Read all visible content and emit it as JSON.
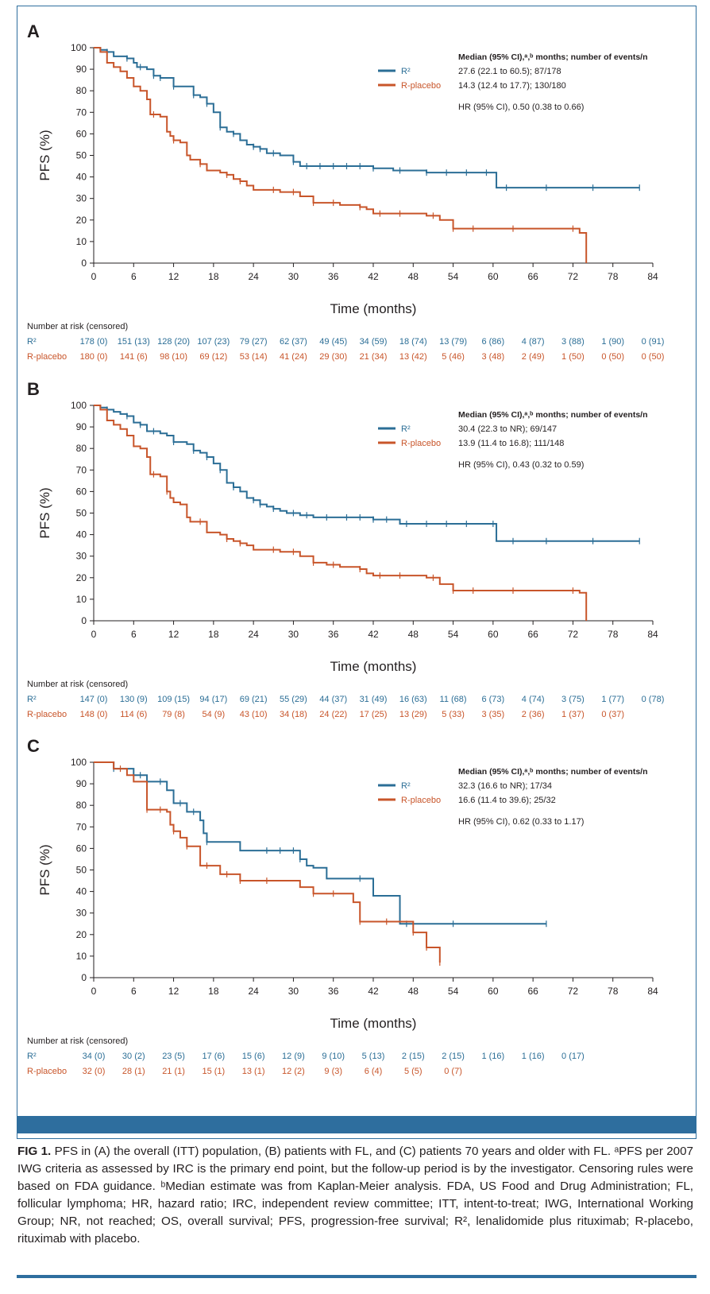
{
  "colors": {
    "r2": "#2b6e96",
    "placebo": "#c8552a",
    "accent": "#2e6e9e"
  },
  "chart_data": [
    {
      "type": "line",
      "panel_label": "A",
      "xlabel": "Time (months)",
      "ylabel": "PFS (%)",
      "xlim": [
        0,
        84
      ],
      "ylim": [
        0,
        100
      ],
      "xticks": [
        0,
        6,
        12,
        18,
        24,
        30,
        36,
        42,
        48,
        54,
        60,
        66,
        72,
        78,
        84
      ],
      "yticks": [
        0,
        10,
        20,
        30,
        40,
        50,
        60,
        70,
        80,
        90,
        100
      ],
      "legend_title": "Median (95% CI),ᵃ,ᵇ months; number of events/n",
      "hr_text": "HR (95% CI), 0.50 (0.38 to 0.66)",
      "series": [
        {
          "name": "R²",
          "color": "#2b6e96",
          "legend_stat": "27.6 (22.1 to 60.5); 87/178",
          "x": [
            0,
            1,
            2,
            3,
            4,
            5,
            6,
            6.5,
            7,
            8,
            9,
            10,
            11,
            12,
            13,
            14,
            15,
            16,
            17,
            18,
            19,
            20,
            21,
            22,
            23,
            24,
            25,
            26,
            27,
            28,
            29,
            30,
            31,
            33,
            36,
            42,
            45,
            50,
            55,
            60.5,
            60.5,
            82
          ],
          "y": [
            100,
            99,
            98,
            96,
            96,
            95,
            93,
            91,
            91,
            90,
            87,
            86,
            86,
            82,
            82,
            82,
            78,
            77,
            74,
            70,
            63,
            61,
            60,
            57,
            55,
            54,
            53,
            51,
            51,
            50,
            50,
            47,
            45,
            45,
            45,
            44,
            43,
            42,
            42,
            42,
            35,
            35
          ],
          "censor_x": [
            2,
            5,
            7,
            9,
            10,
            12,
            15,
            17,
            19,
            21,
            24,
            25,
            27,
            30,
            32,
            34,
            36,
            38,
            40,
            42,
            46,
            50,
            53,
            56,
            59,
            62,
            68,
            75,
            82
          ]
        },
        {
          "name": "R-placebo",
          "color": "#c8552a",
          "legend_stat": "14.3 (12.4 to 17.7); 130/180",
          "x": [
            0,
            1,
            2,
            3,
            4,
            5,
            6,
            7,
            8,
            8.5,
            10,
            11,
            11.5,
            12,
            13,
            14,
            14.5,
            16,
            17,
            19,
            20,
            21,
            22,
            23,
            24,
            27,
            28,
            30,
            31,
            33,
            35,
            37,
            40,
            41,
            42,
            48,
            50,
            52,
            54,
            73,
            74,
            74
          ],
          "y": [
            100,
            98,
            93,
            91,
            89,
            86,
            82,
            80,
            76,
            69,
            68,
            61,
            59,
            57,
            56,
            50,
            48,
            46,
            43,
            42,
            41,
            39,
            38,
            36,
            34,
            34,
            33,
            33,
            31,
            28,
            28,
            27,
            26,
            25,
            23,
            23,
            22,
            20,
            16,
            14,
            14,
            0
          ],
          "censor_x": [
            9,
            12,
            16,
            20,
            22,
            27,
            30,
            33,
            36,
            40,
            43,
            46,
            51,
            54,
            57,
            63,
            72
          ]
        }
      ],
      "risk_table": {
        "title": "Number at risk (censored)",
        "rows": [
          {
            "label": "R²",
            "values": [
              "178 (0)",
              "151 (13)",
              "128 (20)",
              "107 (23)",
              "79 (27)",
              "62 (37)",
              "49 (45)",
              "34 (59)",
              "18 (74)",
              "13 (79)",
              "6 (86)",
              "4 (87)",
              "3 (88)",
              "1 (90)",
              "0 (91)"
            ]
          },
          {
            "label": "R-placebo",
            "values": [
              "180 (0)",
              "141 (6)",
              "98 (10)",
              "69 (12)",
              "53 (14)",
              "41 (24)",
              "29 (30)",
              "21 (34)",
              "13 (42)",
              "5 (46)",
              "3 (48)",
              "2 (49)",
              "1 (50)",
              "0 (50)",
              "0 (50)"
            ]
          }
        ]
      }
    },
    {
      "type": "line",
      "panel_label": "B",
      "xlabel": "Time (months)",
      "ylabel": "PFS (%)",
      "xlim": [
        0,
        84
      ],
      "ylim": [
        0,
        100
      ],
      "xticks": [
        0,
        6,
        12,
        18,
        24,
        30,
        36,
        42,
        48,
        54,
        60,
        66,
        72,
        78,
        84
      ],
      "yticks": [
        0,
        10,
        20,
        30,
        40,
        50,
        60,
        70,
        80,
        90,
        100
      ],
      "legend_title": "Median (95% CI),ᵃ,ᵇ months; number of events/n",
      "hr_text": "HR (95% CI), 0.43 (0.32 to 0.59)",
      "series": [
        {
          "name": "R²",
          "color": "#2b6e96",
          "legend_stat": "30.4 (22.3 to NR); 69/147",
          "x": [
            0,
            1,
            2,
            3,
            4,
            5,
            6,
            7,
            8,
            9,
            10,
            11,
            12,
            13,
            14,
            15,
            16,
            17,
            18,
            19,
            20,
            21,
            22,
            23,
            24,
            25,
            26,
            27,
            28,
            29,
            30,
            31,
            33,
            36,
            42,
            46,
            50,
            55,
            60.5,
            60.5,
            82
          ],
          "y": [
            100,
            99,
            98,
            97,
            96,
            95,
            92,
            91,
            88,
            88,
            87,
            86,
            83,
            83,
            82,
            79,
            78,
            76,
            73,
            70,
            64,
            62,
            60,
            57,
            56,
            54,
            53,
            52,
            51,
            50,
            50,
            49,
            48,
            48,
            47,
            45,
            45,
            45,
            45,
            37,
            37
          ],
          "censor_x": [
            2,
            5,
            7,
            9,
            12,
            15,
            17,
            19,
            21,
            24,
            25,
            27,
            30,
            32,
            35,
            38,
            40,
            42,
            44,
            47,
            50,
            53,
            56,
            60,
            63,
            68,
            75,
            82
          ]
        },
        {
          "name": "R-placebo",
          "color": "#c8552a",
          "legend_stat": "13.9 (11.4 to 16.8); 111/148",
          "x": [
            0,
            1,
            2,
            3,
            4,
            5,
            6,
            7,
            8,
            8.5,
            10,
            11,
            11.5,
            12,
            13,
            14,
            14.5,
            16,
            17,
            19,
            20,
            21,
            22,
            23,
            24,
            27,
            28,
            30,
            31,
            33,
            35,
            37,
            40,
            41,
            42,
            48,
            50,
            52,
            54,
            73,
            74,
            74
          ],
          "y": [
            100,
            98,
            93,
            91,
            89,
            86,
            81,
            80,
            76,
            68,
            67,
            60,
            57,
            55,
            54,
            48,
            46,
            46,
            41,
            40,
            38,
            37,
            36,
            35,
            33,
            33,
            32,
            32,
            30,
            27,
            26,
            25,
            24,
            22,
            21,
            21,
            20,
            17,
            14,
            13,
            13,
            0
          ],
          "censor_x": [
            9,
            11,
            16,
            20,
            22,
            27,
            30,
            33,
            36,
            40,
            43,
            46,
            51,
            54,
            57,
            63,
            72
          ]
        }
      ],
      "risk_table": {
        "title": "Number at risk (censored)",
        "rows": [
          {
            "label": "R²",
            "values": [
              "147 (0)",
              "130 (9)",
              "109 (15)",
              "94 (17)",
              "69 (21)",
              "55 (29)",
              "44 (37)",
              "31 (49)",
              "16 (63)",
              "11 (68)",
              "6 (73)",
              "4 (74)",
              "3 (75)",
              "1 (77)",
              "0 (78)"
            ]
          },
          {
            "label": "R-placebo",
            "values": [
              "148 (0)",
              "114 (6)",
              "79 (8)",
              "54 (9)",
              "43 (10)",
              "34 (18)",
              "24 (22)",
              "17 (25)",
              "13 (29)",
              "5 (33)",
              "3 (35)",
              "2 (36)",
              "1 (37)",
              "0 (37)",
              ""
            ]
          }
        ]
      }
    },
    {
      "type": "line",
      "panel_label": "C",
      "xlabel": "Time (months)",
      "ylabel": "PFS (%)",
      "xlim": [
        0,
        84
      ],
      "ylim": [
        0,
        100
      ],
      "xticks": [
        0,
        6,
        12,
        18,
        24,
        30,
        36,
        42,
        48,
        54,
        60,
        66,
        72,
        78,
        84
      ],
      "yticks": [
        0,
        10,
        20,
        30,
        40,
        50,
        60,
        70,
        80,
        90,
        100
      ],
      "legend_title": "Median (95% CI),ᵃ,ᵇ months; number of events/n",
      "hr_text": "HR (95% CI), 0.62 (0.33 to 1.17)",
      "series": [
        {
          "name": "R²",
          "color": "#2b6e96",
          "legend_stat": "32.3 (16.6 to NR); 17/34",
          "x": [
            0,
            3,
            6,
            8,
            11,
            12,
            14,
            16,
            16.5,
            17,
            22,
            31,
            32,
            33,
            35,
            41,
            42,
            46,
            46,
            68
          ],
          "y": [
            100,
            97,
            94,
            91,
            87,
            81,
            77,
            73,
            67,
            63,
            59,
            55,
            52,
            51,
            46,
            46,
            38,
            38,
            25,
            25
          ],
          "censor_x": [
            3,
            7,
            10,
            13,
            15,
            17,
            26,
            28,
            30,
            31,
            40,
            47,
            54,
            68
          ]
        },
        {
          "name": "R-placebo",
          "color": "#c8552a",
          "legend_stat": "16.6 (11.4 to 39.6); 25/32",
          "x": [
            0,
            3,
            5,
            6,
            8,
            11,
            11.5,
            12,
            13,
            14,
            16,
            19,
            22,
            31,
            33,
            39,
            40,
            46,
            48,
            50,
            52,
            52
          ],
          "y": [
            100,
            97,
            94,
            91,
            78,
            77,
            71,
            68,
            65,
            61,
            52,
            48,
            45,
            42,
            39,
            35,
            26,
            26,
            21,
            14,
            14,
            7
          ],
          "censor_x": [
            4,
            8,
            10,
            12,
            14,
            17,
            20,
            22,
            26,
            33,
            36,
            40,
            44,
            48,
            50,
            52
          ]
        }
      ],
      "risk_table": {
        "title": "Number at risk (censored)",
        "rows": [
          {
            "label": "R²",
            "values": [
              "34 (0)",
              "30 (2)",
              "23 (5)",
              "17 (6)",
              "15 (6)",
              "12 (9)",
              "9 (10)",
              "5 (13)",
              "2 (15)",
              "2 (15)",
              "1 (16)",
              "1 (16)",
              "0 (17)",
              "",
              ""
            ]
          },
          {
            "label": "R-placebo",
            "values": [
              "32 (0)",
              "28 (1)",
              "21 (1)",
              "15 (1)",
              "13 (1)",
              "12 (2)",
              "9 (3)",
              "6 (4)",
              "5 (5)",
              "0 (7)",
              "",
              "",
              "",
              "",
              ""
            ]
          }
        ]
      }
    }
  ],
  "caption": {
    "label": "FIG 1.",
    "text": "PFS in (A) the overall (ITT) population, (B) patients with FL, and (C) patients 70 years and older with FL. ᵃPFS per 2007 IWG criteria as assessed by IRC is the primary end point, but the follow-up period is by the investigator. Censoring rules were based on FDA guidance. ᵇMedian estimate was from Kaplan-Meier analysis. FDA, US Food and Drug Administration; FL, follicular lymphoma; HR, hazard ratio; IRC, independent review committee; ITT, intent-to-treat; IWG, International Working Group; NR, not reached; OS, overall survival; PFS, progression-free survival; R², lenalidomide plus rituximab; R-placebo, rituximab with placebo."
  }
}
